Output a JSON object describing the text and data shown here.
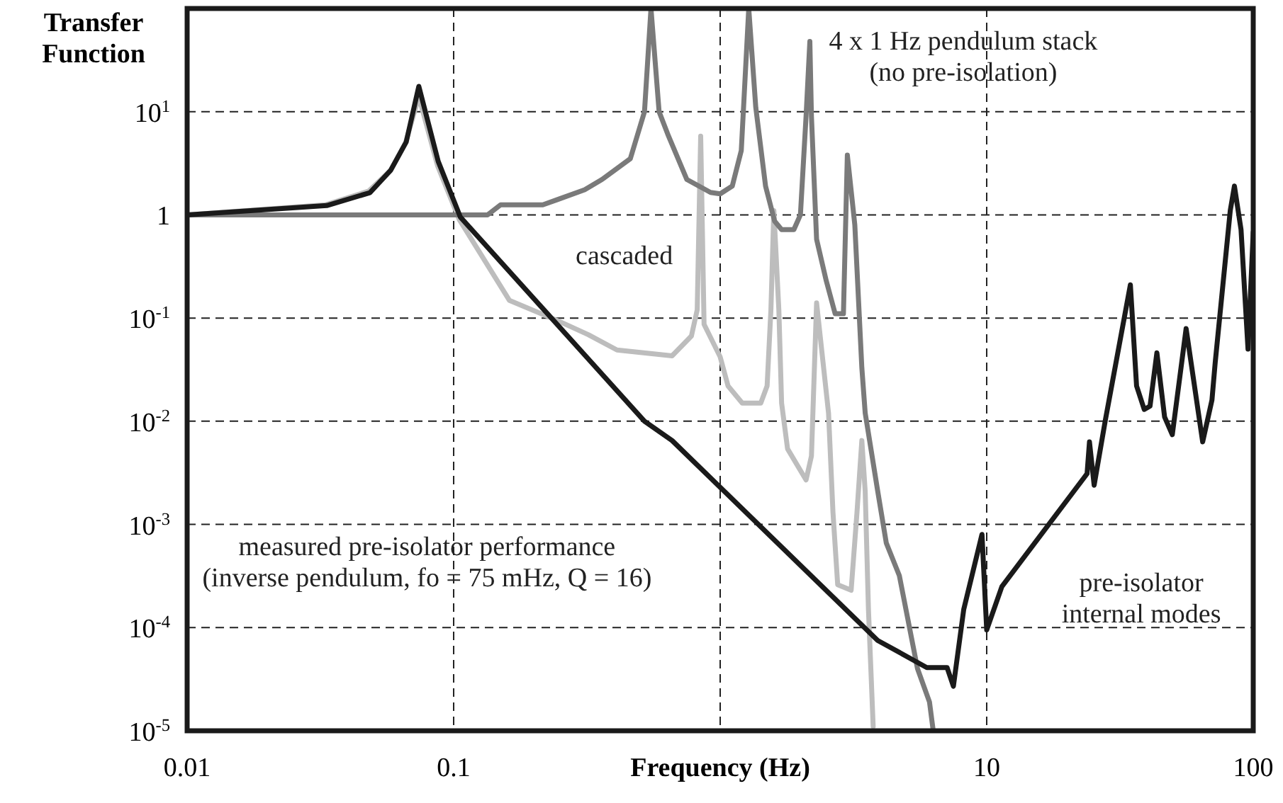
{
  "chart_data": {
    "type": "line",
    "xlabel": "Frequency (Hz)",
    "ylabel": "Transfer Function",
    "log": "xy",
    "grid": true,
    "line_style": "solid",
    "xlim": [
      0.01,
      100
    ],
    "xticks": [
      0.01,
      0.1,
      {
        "value": 1,
        "label": null
      },
      10,
      100
    ],
    "ylim": [
      1e-05,
      100
    ],
    "yticks": [
      {
        "value": 1e-05,
        "label": "10$^{-5}$"
      },
      {
        "value": 0.0001,
        "label": "10$^{-4}$"
      },
      {
        "value": 0.001,
        "label": "10$^{-3}$"
      },
      {
        "value": 0.01,
        "label": "10$^{-2}$"
      },
      {
        "value": 0.1,
        "label": "10$^{-1}$"
      },
      1,
      {
        "value": 10,
        "label": "10$^{1}$"
      }
    ],
    "series": [
      {
        "color": "#bdbdbd",
        "x": [
          0.01,
          0.033,
          0.048,
          0.058,
          0.066,
          0.074,
          0.087,
          0.105,
          0.162,
          0.244,
          0.32,
          0.41,
          0.66,
          0.78,
          0.82,
          0.845,
          0.87,
          1.0,
          1.07,
          1.21,
          1.42,
          1.5,
          1.55,
          1.59,
          1.66,
          1.7,
          1.79,
          2.1,
          2.2,
          2.3,
          2.55,
          2.65,
          2.76,
          3.1,
          3.26,
          3.4,
          3.5,
          3.6,
          3.75
        ],
        "values": [
          1,
          1.25,
          1.7,
          2.7,
          5,
          14,
          3,
          0.9,
          0.148,
          0.095,
          0.069,
          0.049,
          0.043,
          0.067,
          0.12,
          5.8,
          0.087,
          0.042,
          0.022,
          0.015,
          0.015,
          0.022,
          0.12,
          1.1,
          0.12,
          0.015,
          0.0054,
          0.0027,
          0.0046,
          0.14,
          0.012,
          0.0013,
          0.00026,
          0.00023,
          0.0013,
          0.0065,
          0.0021,
          0.00015,
          1.1e-05
        ]
      },
      {
        "color": "#7a7a7a",
        "x": [
          0.01,
          0.134,
          0.15,
          0.216,
          0.244,
          0.31,
          0.36,
          0.46,
          0.52,
          0.55,
          0.59,
          0.64,
          0.75,
          0.92,
          1.0,
          1.11,
          1.2,
          1.28,
          1.36,
          1.48,
          1.6,
          1.7,
          1.89,
          2.0,
          2.1,
          2.17,
          2.2,
          2.3,
          2.5,
          2.7,
          2.9,
          3.0,
          3.2,
          3.4,
          3.5,
          3.9,
          4.2,
          4.7,
          5.5,
          6.1,
          6.3
        ],
        "values": [
          1,
          1,
          1.25,
          1.25,
          1.4,
          1.75,
          2.2,
          3.5,
          10,
          100,
          10,
          5.8,
          2.2,
          1.65,
          1.6,
          1.9,
          4.2,
          100,
          11,
          1.9,
          0.87,
          0.72,
          0.72,
          1.0,
          9,
          48,
          9,
          0.58,
          0.23,
          0.11,
          0.11,
          3.8,
          0.8,
          0.033,
          0.012,
          0.0021,
          0.00066,
          0.00032,
          4e-05,
          1.9e-05,
          1e-05
        ]
      },
      {
        "color": "#1a1a1a",
        "x": [
          0.01,
          0.0334,
          0.0485,
          0.058,
          0.0664,
          0.074,
          0.0875,
          0.106,
          0.52,
          0.66,
          3.9,
          5.96,
          7.1,
          7.5,
          8.2,
          9.6,
          10,
          11.4,
          23.8,
          24.3,
          25.3,
          27.9,
          34.6,
          36.5,
          39,
          41,
          43.5,
          46.5,
          49.7,
          56,
          64.6,
          70,
          72,
          82,
          85,
          90,
          95.6,
          100
        ],
        "values": [
          1,
          1.23,
          1.64,
          2.7,
          5.1,
          17.6,
          3.3,
          0.95,
          0.01,
          0.0065,
          7.5e-05,
          4.1e-05,
          4.1e-05,
          2.7e-05,
          0.00015,
          0.0008,
          9.5e-05,
          0.00025,
          0.0031,
          0.0063,
          0.0024,
          0.0104,
          0.21,
          0.022,
          0.013,
          0.014,
          0.046,
          0.011,
          0.0074,
          0.079,
          0.0063,
          0.016,
          0.037,
          1.1,
          1.9,
          0.72,
          0.05,
          0.68
        ]
      }
    ],
    "annotations": [
      "4 x 1 Hz pendulum stack\n(no pre-isolation)",
      "cascaded",
      "measured pre-isolator performance\n(inverse pendulum, fo = 75 mHz, Q = 16)",
      "pre-isolator\ninternal modes"
    ]
  }
}
